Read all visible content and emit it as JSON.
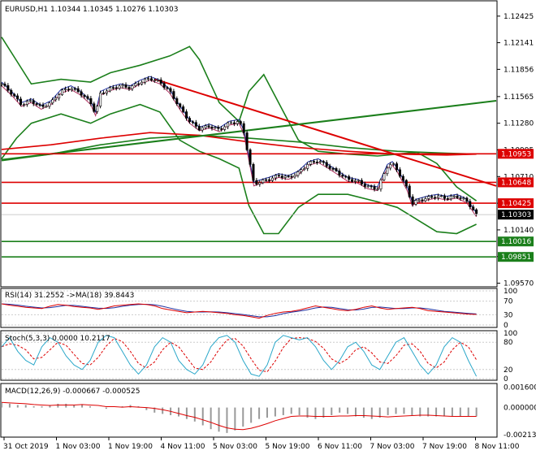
{
  "chart_data": {
    "type": "candlestick",
    "symbol_header": "EURUSD,H1  1.10344  1.10345  1.10276  1.10303",
    "price_ticks": [
      "1.12425",
      "1.12141",
      "1.11856",
      "1.11565",
      "1.11280",
      "1.10995",
      "1.10710",
      "1.10425",
      "1.10140",
      "1.09855",
      "1.09570"
    ],
    "price_range": [
      1.0954,
      1.1258
    ],
    "last_price": "1.10303",
    "levels": [
      {
        "label": "1.10953",
        "price": 1.10953,
        "color": "#dd0000"
      },
      {
        "label": "1.10648",
        "price": 1.10648,
        "color": "#dd0000"
      },
      {
        "label": "1.10425",
        "price": 1.10425,
        "color": "#dd0000"
      },
      {
        "label": "1.10016",
        "price": 1.10016,
        "color": "#1b7f1b"
      },
      {
        "label": "1.09851",
        "price": 1.09851,
        "color": "#1b7f1b"
      }
    ],
    "trend_lines": [
      {
        "color": "#dd0000",
        "from": [
          0.31,
          1.1175
        ],
        "to": [
          1.0,
          1.1061
        ]
      },
      {
        "color": "#1b7f1b",
        "from": [
          0.0,
          1.1089
        ],
        "to": [
          1.0,
          1.1152
        ]
      }
    ],
    "close_path": [
      [
        0.0,
        1.117
      ],
      [
        0.02,
        1.116
      ],
      [
        0.04,
        1.1148
      ],
      [
        0.06,
        1.1152
      ],
      [
        0.08,
        1.1145
      ],
      [
        0.1,
        1.115
      ],
      [
        0.12,
        1.1162
      ],
      [
        0.14,
        1.1166
      ],
      [
        0.16,
        1.116
      ],
      [
        0.18,
        1.115
      ],
      [
        0.19,
        1.1138
      ],
      [
        0.2,
        1.116
      ],
      [
        0.22,
        1.1165
      ],
      [
        0.24,
        1.1168
      ],
      [
        0.26,
        1.1166
      ],
      [
        0.28,
        1.1172
      ],
      [
        0.3,
        1.1176
      ],
      [
        0.32,
        1.1172
      ],
      [
        0.34,
        1.1162
      ],
      [
        0.36,
        1.1145
      ],
      [
        0.38,
        1.113
      ],
      [
        0.4,
        1.1122
      ],
      [
        0.42,
        1.1125
      ],
      [
        0.44,
        1.1121
      ],
      [
        0.46,
        1.1128
      ],
      [
        0.48,
        1.113
      ],
      [
        0.49,
        1.1118
      ],
      [
        0.5,
        1.109
      ],
      [
        0.51,
        1.1063
      ],
      [
        0.52,
        1.1065
      ],
      [
        0.54,
        1.1068
      ],
      [
        0.56,
        1.1072
      ],
      [
        0.58,
        1.107
      ],
      [
        0.6,
        1.1075
      ],
      [
        0.62,
        1.1085
      ],
      [
        0.64,
        1.1088
      ],
      [
        0.66,
        1.1082
      ],
      [
        0.68,
        1.1075
      ],
      [
        0.7,
        1.1068
      ],
      [
        0.72,
        1.1066
      ],
      [
        0.74,
        1.106
      ],
      [
        0.76,
        1.1058
      ],
      [
        0.78,
        1.1082
      ],
      [
        0.79,
        1.1085
      ],
      [
        0.8,
        1.1078
      ],
      [
        0.82,
        1.1058
      ],
      [
        0.83,
        1.1042
      ],
      [
        0.84,
        1.1045
      ],
      [
        0.86,
        1.1048
      ],
      [
        0.88,
        1.105
      ],
      [
        0.9,
        1.1048
      ],
      [
        0.92,
        1.105
      ],
      [
        0.94,
        1.1045
      ],
      [
        0.95,
        1.1038
      ],
      [
        0.96,
        1.103
      ]
    ],
    "bollinger_upper": [
      [
        0.0,
        1.122
      ],
      [
        0.03,
        1.1195
      ],
      [
        0.06,
        1.117
      ],
      [
        0.12,
        1.1175
      ],
      [
        0.18,
        1.1172
      ],
      [
        0.22,
        1.1182
      ],
      [
        0.28,
        1.119
      ],
      [
        0.34,
        1.12
      ],
      [
        0.38,
        1.121
      ],
      [
        0.4,
        1.1196
      ],
      [
        0.44,
        1.115
      ],
      [
        0.48,
        1.113
      ],
      [
        0.5,
        1.1162
      ],
      [
        0.53,
        1.118
      ],
      [
        0.56,
        1.115
      ],
      [
        0.6,
        1.111
      ],
      [
        0.64,
        1.1098
      ],
      [
        0.7,
        1.1095
      ],
      [
        0.76,
        1.1093
      ],
      [
        0.8,
        1.1095
      ],
      [
        0.84,
        1.1097
      ],
      [
        0.88,
        1.1085
      ],
      [
        0.92,
        1.106
      ],
      [
        0.96,
        1.1045
      ]
    ],
    "bollinger_lower": [
      [
        0.0,
        1.109
      ],
      [
        0.03,
        1.1112
      ],
      [
        0.06,
        1.1128
      ],
      [
        0.12,
        1.1138
      ],
      [
        0.18,
        1.1128
      ],
      [
        0.22,
        1.1138
      ],
      [
        0.28,
        1.1148
      ],
      [
        0.32,
        1.114
      ],
      [
        0.36,
        1.111
      ],
      [
        0.4,
        1.1098
      ],
      [
        0.44,
        1.109
      ],
      [
        0.48,
        1.108
      ],
      [
        0.5,
        1.104
      ],
      [
        0.53,
        1.101
      ],
      [
        0.56,
        1.101
      ],
      [
        0.6,
        1.1038
      ],
      [
        0.64,
        1.1052
      ],
      [
        0.7,
        1.1052
      ],
      [
        0.76,
        1.1044
      ],
      [
        0.8,
        1.1038
      ],
      [
        0.84,
        1.1025
      ],
      [
        0.88,
        1.1012
      ],
      [
        0.92,
        1.101
      ],
      [
        0.96,
        1.102
      ]
    ],
    "ma_slow_red": [
      [
        0.0,
        1.11
      ],
      [
        0.1,
        1.1105
      ],
      [
        0.2,
        1.1112
      ],
      [
        0.3,
        1.1118
      ],
      [
        0.4,
        1.1115
      ],
      [
        0.5,
        1.1108
      ],
      [
        0.6,
        1.1102
      ],
      [
        0.7,
        1.1098
      ],
      [
        0.8,
        1.1095
      ],
      [
        0.9,
        1.1094
      ],
      [
        0.96,
        1.1095
      ]
    ],
    "ma_slow_green": [
      [
        0.0,
        1.1088
      ],
      [
        0.1,
        1.1095
      ],
      [
        0.2,
        1.1105
      ],
      [
        0.3,
        1.1112
      ],
      [
        0.4,
        1.1115
      ],
      [
        0.5,
        1.1112
      ],
      [
        0.6,
        1.1108
      ],
      [
        0.7,
        1.1102
      ],
      [
        0.8,
        1.1098
      ],
      [
        0.9,
        1.1096
      ],
      [
        0.96,
        1.1095
      ]
    ],
    "rsi": {
      "label": "RSI(14) 31.2552  ->MA(18) 39.8443",
      "ticks": [
        "100",
        "70",
        "30",
        "0"
      ],
      "values": [
        62,
        58,
        55,
        52,
        50,
        48,
        55,
        60,
        58,
        54,
        52,
        50,
        46,
        50,
        56,
        58,
        60,
        62,
        60,
        56,
        48,
        44,
        40,
        36,
        38,
        40,
        38,
        36,
        34,
        30,
        28,
        24,
        20,
        28,
        34,
        38,
        40,
        44,
        50,
        56,
        52,
        48,
        44,
        42,
        46,
        52,
        56,
        50,
        46,
        48,
        50,
        52,
        48,
        42,
        40,
        38,
        36,
        34,
        32,
        31
      ]
    },
    "stoch": {
      "label": "Stoch(5,3,3) 0.0000  10.2117",
      "ticks": [
        "100",
        "80",
        "20",
        "0"
      ],
      "values": [
        70,
        90,
        60,
        40,
        30,
        70,
        90,
        80,
        50,
        30,
        20,
        40,
        80,
        95,
        90,
        60,
        30,
        10,
        30,
        70,
        90,
        80,
        40,
        20,
        10,
        30,
        70,
        90,
        95,
        80,
        40,
        10,
        5,
        30,
        80,
        95,
        90,
        85,
        90,
        70,
        40,
        20,
        40,
        70,
        80,
        60,
        30,
        20,
        50,
        80,
        90,
        60,
        30,
        10,
        30,
        70,
        90,
        80,
        40,
        5
      ]
    },
    "macd": {
      "label": "MACD(12,26,9) -0.000667  -0.000525",
      "ticks": [
        "0.001600",
        "0.000000",
        "-0.002135"
      ],
      "values": [
        0.0004,
        0.0003,
        0.0002,
        0.0002,
        0.0001,
        0.0001,
        0.0002,
        0.0003,
        0.0003,
        0.0002,
        0.0002,
        0.0001,
        0.0,
        -0.0001,
        0.0,
        0.0001,
        0.0002,
        0.0001,
        -0.0002,
        -0.0004,
        -0.0005,
        -0.0006,
        -0.0007,
        -0.0009,
        -0.0011,
        -0.0014,
        -0.0017,
        -0.0019,
        -0.002,
        -0.0018,
        -0.0015,
        -0.0012,
        -0.0009,
        -0.0008,
        -0.0007,
        -0.0006,
        -0.0005,
        -0.0006,
        -0.0008,
        -0.0009,
        -0.0008,
        -0.0006,
        -0.0004,
        -0.0005,
        -0.0007,
        -0.0008,
        -0.0009,
        -0.0008,
        -0.0006,
        -0.0005,
        -0.0005,
        -0.0006,
        -0.0007,
        -0.0007,
        -0.0007,
        -0.0007,
        -0.0007,
        -0.0007,
        -0.0007,
        -0.0007
      ]
    },
    "time_labels": [
      "31 Oct 2019",
      "1 Nov 03:00",
      "1 Nov 19:00",
      "4 Nov 11:00",
      "5 Nov 03:00",
      "5 Nov 19:00",
      "6 Nov 11:00",
      "7 Nov 03:00",
      "7 Nov 19:00",
      "8 Nov 11:00"
    ],
    "colors": {
      "candle": "#000000",
      "upper_band": "#1b7f1b",
      "red": "#dd0000",
      "blue": "#1f2f9f"
    }
  }
}
